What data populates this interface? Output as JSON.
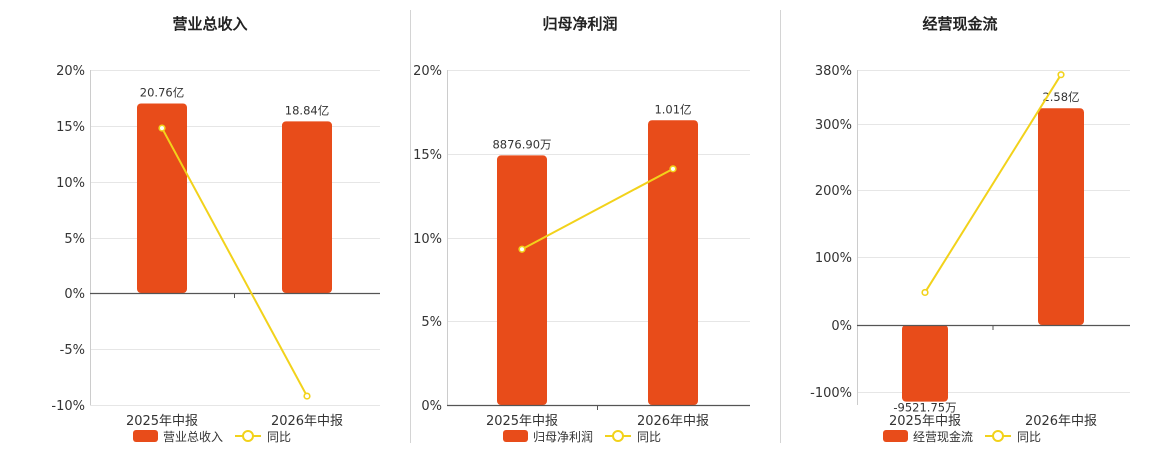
{
  "chart_data": [
    {
      "type": "bar",
      "title": "营业总收入",
      "categories": [
        "2025年中报",
        "2026年中报"
      ],
      "y_ticks": [
        "20%",
        "15%",
        "10%",
        "5%",
        "0%",
        "-5%",
        "-10%"
      ],
      "ylim": [
        -10,
        20
      ],
      "series": [
        {
          "name": "营业总收入",
          "kind": "bar",
          "values": [
            17,
            15.4
          ],
          "labels": [
            "20.76亿",
            "18.84亿"
          ],
          "color": "#e84c1a"
        },
        {
          "name": "同比",
          "kind": "line",
          "values": [
            14.8,
            -9.2
          ],
          "color": "#f2d21b"
        }
      ],
      "legend_position": "bottom",
      "grid": true
    },
    {
      "type": "bar",
      "title": "归母净利润",
      "categories": [
        "2025年中报",
        "2026年中报"
      ],
      "y_ticks": [
        "20%",
        "15%",
        "10%",
        "5%",
        "0%"
      ],
      "ylim": [
        0,
        20
      ],
      "series": [
        {
          "name": "归母净利润",
          "kind": "bar",
          "values": [
            14.9,
            17
          ],
          "labels": [
            "8876.90万",
            "1.01亿"
          ],
          "color": "#e84c1a"
        },
        {
          "name": "同比",
          "kind": "line",
          "values": [
            9.3,
            14.1
          ],
          "color": "#f2d21b"
        }
      ],
      "legend_position": "bottom",
      "grid": true
    },
    {
      "type": "bar",
      "title": "经营现金流",
      "categories": [
        "2025年中报",
        "2026年中报"
      ],
      "y_ticks": [
        "380%",
        "300%",
        "200%",
        "100%",
        "0%",
        "-100%"
      ],
      "ylim": [
        -120,
        380
      ],
      "series": [
        {
          "name": "经营现金流",
          "kind": "bar",
          "values": [
            -115,
            323
          ],
          "labels": [
            "-9521.75万",
            "2.58亿"
          ],
          "color": "#e84c1a"
        },
        {
          "name": "同比",
          "kind": "line",
          "values": [
            48,
            373
          ],
          "color": "#f2d21b"
        }
      ],
      "legend_position": "bottom",
      "grid": true
    }
  ]
}
